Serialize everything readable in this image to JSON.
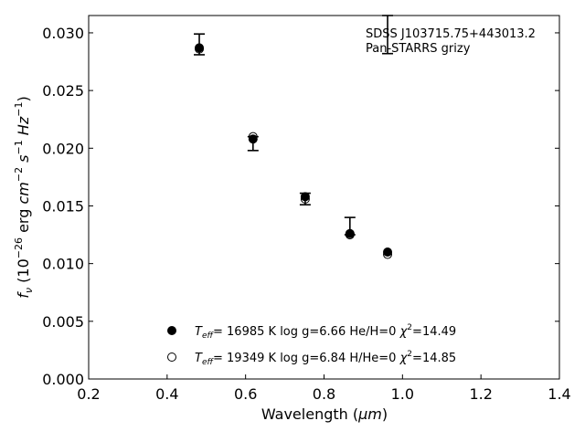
{
  "chart_data": {
    "type": "scatter",
    "title": "",
    "annotation_lines": [
      "SDSS J103715.75+443013.2",
      "Pan-STARRS grizy"
    ],
    "xlabel": {
      "main": "Wavelength (",
      "sym": "μm",
      "end": ")"
    },
    "ylabel": {
      "f": "f",
      "sub": "ν",
      "pre": " (10",
      "e1": "−26",
      "mid": " erg ",
      "cm": "cm",
      "e2": "−2",
      "s": " s",
      "e3": "−1",
      "hz": " Hz",
      "e4": "−1",
      "end": ")"
    },
    "xlim": [
      0.2,
      1.4
    ],
    "ylim": [
      0.0,
      0.0315
    ],
    "xticks": [
      0.2,
      0.4,
      0.6,
      0.8,
      1.0,
      1.2,
      1.4
    ],
    "xtick_labels": [
      "0.2",
      "0.4",
      "0.6",
      "0.8",
      "1.0",
      "1.2",
      "1.4"
    ],
    "yticks": [
      0.0,
      0.005,
      0.01,
      0.015,
      0.02,
      0.025,
      0.03
    ],
    "ytick_labels": [
      "0.000",
      "0.005",
      "0.010",
      "0.015",
      "0.020",
      "0.025",
      "0.030"
    ],
    "grid": false,
    "legend_position": "bottom-center",
    "observed": {
      "x": [
        0.482,
        0.619,
        0.752,
        0.866,
        0.962
      ],
      "y": [
        0.0287,
        0.0209,
        0.0157,
        0.0126,
        0.011
      ],
      "err_lo": [
        0.0281,
        0.0198,
        0.0151,
        0.0125,
        0.0282
      ],
      "err_hi": [
        0.0299,
        0.021,
        0.0161,
        0.014,
        0.0315
      ]
    },
    "series": [
      {
        "teff": "16985",
        "params": "log g=6.66  He/H=0",
        "chi2": "14.49",
        "marker": "filled",
        "x": [
          0.482,
          0.619,
          0.752,
          0.866,
          0.962
        ],
        "y": [
          0.0287,
          0.0208,
          0.0158,
          0.0126,
          0.011
        ]
      },
      {
        "teff": "19349",
        "params": "log g=6.84  H/He=0",
        "chi2": "14.85",
        "marker": "open",
        "x": [
          0.482,
          0.619,
          0.752,
          0.866,
          0.962
        ],
        "y": [
          0.0286,
          0.021,
          0.0156,
          0.0125,
          0.0108
        ]
      }
    ]
  }
}
